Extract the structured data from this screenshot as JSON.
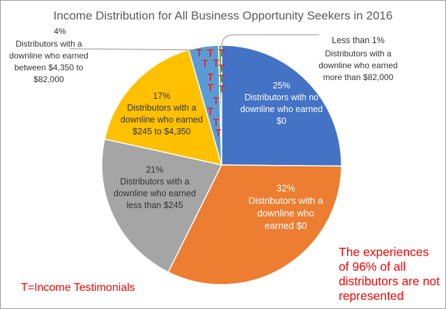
{
  "chart_data": {
    "type": "pie",
    "title": "Income Distribution for All Business Opportunity Seekers in 2016",
    "slices": [
      {
        "percent_label": "25%",
        "value": 25,
        "label_lines": [
          "Distributors with no",
          "downline who earned",
          "$0"
        ],
        "color": "#4472C4",
        "label_color": "#ffffff"
      },
      {
        "percent_label": "32%",
        "value": 32,
        "label_lines": [
          "Distributors with a",
          "downline who",
          "earned $0"
        ],
        "color": "#ED7D31",
        "label_color": "#ffffff"
      },
      {
        "percent_label": "21%",
        "value": 21,
        "label_lines": [
          "Distributors with a",
          "downline who earned",
          "less than $245"
        ],
        "color": "#A5A5A5",
        "label_color": "#333333"
      },
      {
        "percent_label": "17%",
        "value": 17,
        "label_lines": [
          "Distributors with a",
          "downline who earned",
          "$245 to $4,350"
        ],
        "color": "#FFC000",
        "label_color": "#333333"
      },
      {
        "percent_label": "4%",
        "value": 4,
        "label_lines": [
          "Distributors with a",
          "downline who earned",
          "between $4,350 to",
          "$82,000"
        ],
        "color": "#5B9BD5",
        "label_color": "#333333"
      },
      {
        "percent_label": "Less than 1%",
        "value": 0.4,
        "label_lines": [
          "Distributors with a",
          "downline who earned",
          "more than $82,000"
        ],
        "color": "#70AD47",
        "label_color": "#333333"
      }
    ],
    "testimonial_marker": "T",
    "testimonial_marker_color": "#FF0000",
    "legend_note": "T=Income Testimonials",
    "annotation_lines": [
      "The experiences",
      "of 96% of all",
      "distributors are not",
      "represented"
    ],
    "annotation_color": "#FF0000"
  }
}
